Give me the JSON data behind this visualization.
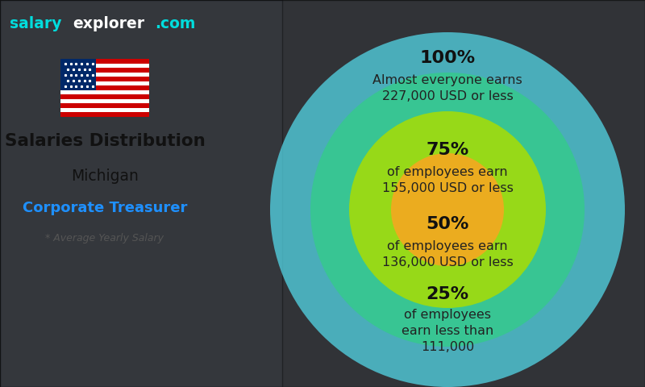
{
  "title_line1": "Salaries Distribution",
  "title_line2": "Michigan",
  "title_line3": "Corporate Treasurer",
  "subtitle": "* Average Yearly Salary",
  "watermark_salary": "salary",
  "watermark_explorer": "explorer",
  "watermark_com": ".com",
  "circles": [
    {
      "r_inch": 2.2,
      "color": "#55DDEE",
      "alpha": 0.72,
      "pct": "100%",
      "line1": "Almost everyone earns",
      "line2": "227,000 USD or less"
    },
    {
      "r_inch": 1.7,
      "color": "#33CC88",
      "alpha": 0.78,
      "pct": "75%",
      "line1": "of employees earn",
      "line2": "155,000 USD or less"
    },
    {
      "r_inch": 1.22,
      "color": "#AADD00",
      "alpha": 0.84,
      "pct": "50%",
      "line1": "of employees earn",
      "line2": "136,000 USD or less"
    },
    {
      "r_inch": 0.7,
      "color": "#F5A820",
      "alpha": 0.9,
      "pct": "25%",
      "line1": "of employees",
      "line2": "earn less than",
      "line3": "111,000"
    }
  ],
  "bg_color": "#3a3a3a",
  "watermark_color_salary": "#00DDDD",
  "watermark_color_explorer": "#ffffff",
  "watermark_color_com": "#00DDDD",
  "text_color_pct": "#111111",
  "text_color_desc": "#222222",
  "left_text_color": "#111111",
  "corp_color": "#1E90FF",
  "note_color": "#555555"
}
